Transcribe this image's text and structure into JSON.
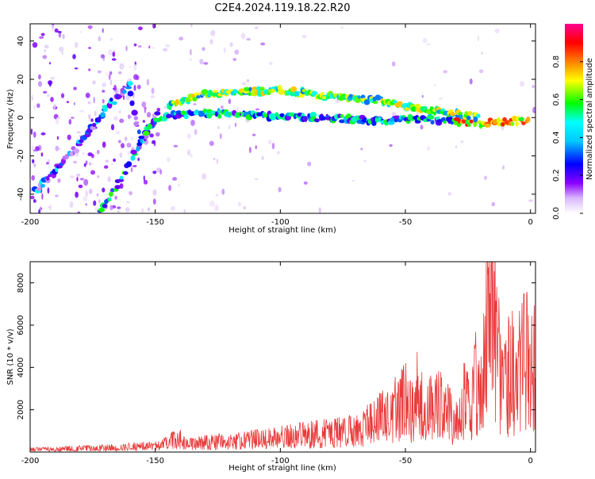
{
  "title": "C2E4.2024.119.18.22.R20",
  "colors": {
    "snr_line": "#e83a3a",
    "frame": "#000000"
  },
  "chart_data": [
    {
      "type": "heatmap",
      "xlabel": "Height of straight line (km)",
      "ylabel": "Frequency (Hz)",
      "xlim": [
        -200,
        2
      ],
      "ylim": [
        -50,
        49
      ],
      "x_ticks": [
        -200,
        -150,
        -100,
        -50,
        0
      ],
      "y_ticks": [
        -40,
        -20,
        0,
        20,
        40
      ],
      "colorbar": {
        "label": "Normalized spectral amplitude",
        "range": [
          0,
          1
        ],
        "ticks": [
          "0.0",
          "0.2",
          "0.4",
          "0.6",
          "0.8"
        ],
        "colormap": [
          "#ffffff",
          "#e0c8f8",
          "#8a00ff",
          "#0000ff",
          "#00ffff",
          "#00ff00",
          "#ffff00",
          "#ff7f00",
          "#ff0000",
          "#ff0088"
        ]
      },
      "features": [
        {
          "x": [
            -198,
            -190,
            -182,
            -176,
            -170,
            -164,
            -160,
            -156,
            -152,
            -148
          ],
          "y": [
            -38,
            -28,
            -16,
            -6,
            4,
            12,
            18,
            -14,
            -4,
            4
          ],
          "amplitude": 0.3
        },
        {
          "x": [
            -172,
            -166,
            -162,
            -158,
            -155,
            -152,
            -148,
            -140,
            -130,
            -120,
            -110,
            -100,
            -90,
            -80,
            -70,
            -60,
            -50,
            -40,
            -30,
            -20,
            -10,
            0
          ],
          "y": [
            -48,
            -38,
            -28,
            -18,
            -10,
            -4,
            0,
            2,
            2,
            2,
            1,
            1,
            0,
            0,
            -1,
            -2,
            -1,
            -1,
            -2,
            -3,
            -2,
            -2
          ],
          "amplitude": 0.4
        },
        {
          "x": [
            -145,
            -140,
            -130,
            -120,
            -110,
            -100,
            -90,
            -80,
            -70,
            -60,
            -50,
            -40,
            -30,
            -20
          ],
          "y": [
            6,
            8,
            12,
            13,
            14,
            14,
            13,
            11,
            10,
            9,
            6,
            4,
            2,
            0
          ],
          "amplitude": 0.55
        }
      ]
    },
    {
      "type": "line",
      "xlabel": "Height of straight line (km)",
      "ylabel": "SNR (10 * v/v)",
      "xlim": [
        -200,
        2
      ],
      "ylim": [
        0,
        9000
      ],
      "x_ticks": [
        -200,
        -150,
        -100,
        -50,
        0
      ],
      "y_ticks": [
        2000,
        4000,
        6000,
        8000
      ],
      "series": [
        {
          "x": [
            -200,
            -190,
            -180,
            -170,
            -160,
            -150,
            -145,
            -141,
            -138,
            -130,
            -120,
            -110,
            -100,
            -90,
            -80,
            -70,
            -65,
            -60,
            -55,
            -50,
            -47,
            -45,
            -42,
            -40,
            -35,
            -30,
            -27,
            -24,
            -22,
            -20,
            -18,
            -17,
            -16,
            -15,
            -14,
            -12,
            -10,
            -8,
            -6,
            -4,
            -2,
            0,
            2
          ],
          "y": [
            120,
            150,
            180,
            200,
            250,
            300,
            400,
            800,
            350,
            450,
            500,
            600,
            700,
            800,
            900,
            1000,
            1400,
            1600,
            1900,
            2500,
            1800,
            2800,
            1500,
            2100,
            2300,
            1300,
            2700,
            1800,
            3200,
            2300,
            4500,
            7500,
            5000,
            9000,
            6000,
            3500,
            3000,
            4000,
            3500,
            3800,
            4500,
            4200,
            5000
          ]
        }
      ]
    }
  ]
}
